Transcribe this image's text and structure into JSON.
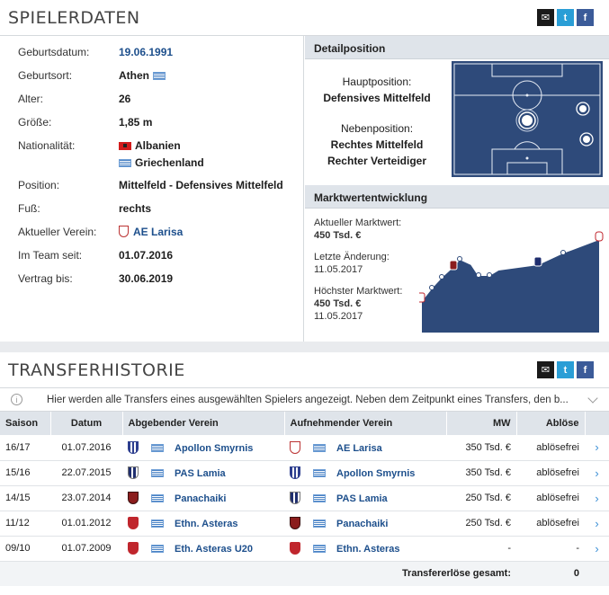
{
  "share": {
    "mail_icon": "mail-icon",
    "twitter_icon": "twitter-icon",
    "facebook_icon": "facebook-icon"
  },
  "spielerdaten": {
    "title": "SPIELERDATEN",
    "rows": [
      {
        "label": "Geburtsdatum:",
        "value": "19.06.1991"
      },
      {
        "label": "Geburtsort:",
        "value": "Athen"
      },
      {
        "label": "Alter:",
        "value": "26"
      },
      {
        "label": "Größe:",
        "value": "1,85 m"
      },
      {
        "label": "Nationalität:",
        "value": "Albanien",
        "value2": "Griechenland"
      },
      {
        "label": "Position:",
        "value": "Mittelfeld - Defensives Mittelfeld"
      },
      {
        "label": "Fuß:",
        "value": "rechts"
      },
      {
        "label": "Aktueller Verein:",
        "value": "AE Larisa"
      },
      {
        "label": "Im Team seit:",
        "value": "01.07.2016"
      },
      {
        "label": "Vertrag bis:",
        "value": "30.06.2019"
      }
    ]
  },
  "detailposition": {
    "title": "Detailposition",
    "haupt_label": "Hauptposition:",
    "haupt_value": "Defensives Mittelfeld",
    "neben_label": "Nebenposition:",
    "neben_values": [
      "Rechtes Mittelfeld",
      "Rechter Verteidiger"
    ]
  },
  "marktwert": {
    "title": "Marktwertentwicklung",
    "current_label": "Aktueller Marktwert:",
    "current_value": "450 Tsd. €",
    "change_label": "Letzte Änderung:",
    "change_value": "11.05.2017",
    "max_label": "Höchster Marktwert:",
    "max_value": "450 Tsd. €",
    "max_date": "11.05.2017"
  },
  "transfer": {
    "title": "TRANSFERHISTORIE",
    "info": "Hier werden alle Transfers eines ausgewählten Spielers angezeigt. Neben dem Zeitpunkt eines Transfers, den b...",
    "headers": [
      "Saison",
      "Datum",
      "Abgebender Verein",
      "Aufnehmender Verein",
      "MW",
      "Ablöse"
    ],
    "rows": [
      {
        "saison": "16/17",
        "datum": "01.07.2016",
        "from": "Apollon Smyrnis",
        "from_badge": "b-apol",
        "to": "AE Larisa",
        "to_badge": "b-larisa",
        "mw": "350 Tsd. €",
        "abloese": "ablösefrei"
      },
      {
        "saison": "15/16",
        "datum": "22.07.2015",
        "from": "PAS Lamia",
        "from_badge": "b-pas",
        "to": "Apollon Smyrnis",
        "to_badge": "b-apol",
        "mw": "350 Tsd. €",
        "abloese": "ablösefrei"
      },
      {
        "saison": "14/15",
        "datum": "23.07.2014",
        "from": "Panachaiki",
        "from_badge": "b-pana",
        "to": "PAS Lamia",
        "to_badge": "b-pas",
        "mw": "250 Tsd. €",
        "abloese": "ablösefrei"
      },
      {
        "saison": "11/12",
        "datum": "01.01.2012",
        "from": "Ethn. Asteras",
        "from_badge": "b-eth",
        "to": "Panachaiki",
        "to_badge": "b-pana",
        "mw": "250 Tsd. €",
        "abloese": "ablösefrei"
      },
      {
        "saison": "09/10",
        "datum": "01.07.2009",
        "from": "Eth. Asteras U20",
        "from_badge": "b-eth",
        "to": "Ethn. Asteras",
        "to_badge": "b-eth",
        "mw": "-",
        "abloese": "-"
      }
    ],
    "sum_label": "Transfererlöse gesamt:",
    "sum_value": "0"
  }
}
